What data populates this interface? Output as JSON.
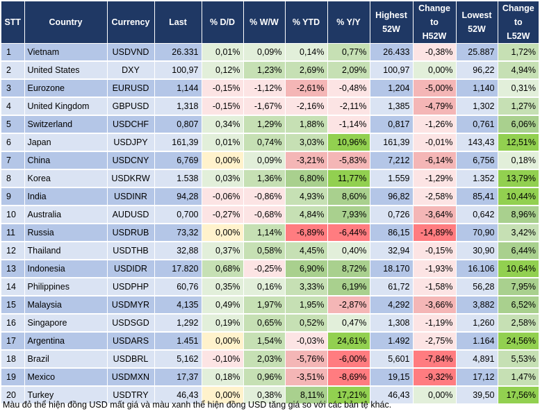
{
  "columns": [
    "STT",
    "Country",
    "Currency",
    "Last",
    "% D/D",
    "% W/W",
    "% YTD",
    "% Y/Y",
    "Highest 52W",
    "Change to H52W",
    "Lowest 52W",
    "Change to L52W"
  ],
  "rows": [
    {
      "stt": "1",
      "country": "Vietnam",
      "currency": "USDVND",
      "last": "26.331",
      "dd": "0,01%",
      "ww": "0,09%",
      "ytd": "0,14%",
      "yy": "0,77%",
      "h52": "26.433",
      "ch52": "-0,38%",
      "l52": "25.887",
      "cl52": "1,72%"
    },
    {
      "stt": "2",
      "country": "United States",
      "currency": "DXY",
      "last": "100,97",
      "dd": "0,12%",
      "ww": "1,23%",
      "ytd": "2,69%",
      "yy": "2,09%",
      "h52": "100,97",
      "ch52": "0,00%",
      "l52": "96,22",
      "cl52": "4,94%"
    },
    {
      "stt": "3",
      "country": "Eurozone",
      "currency": "EURUSD",
      "last": "1,144",
      "dd": "-0,15%",
      "ww": "-1,12%",
      "ytd": "-2,61%",
      "yy": "-0,48%",
      "h52": "1,204",
      "ch52": "-5,00%",
      "l52": "1,140",
      "cl52": "0,31%"
    },
    {
      "stt": "4",
      "country": "United Kingdom",
      "currency": "GBPUSD",
      "last": "1,318",
      "dd": "-0,15%",
      "ww": "-1,67%",
      "ytd": "-2,16%",
      "yy": "-2,11%",
      "h52": "1,385",
      "ch52": "-4,79%",
      "l52": "1,302",
      "cl52": "1,27%"
    },
    {
      "stt": "5",
      "country": "Switzerland",
      "currency": "USDCHF",
      "last": "0,807",
      "dd": "0,34%",
      "ww": "1,29%",
      "ytd": "1,88%",
      "yy": "-1,14%",
      "h52": "0,817",
      "ch52": "-1,26%",
      "l52": "0,761",
      "cl52": "6,06%"
    },
    {
      "stt": "6",
      "country": "Japan",
      "currency": "USDJPY",
      "last": "161,39",
      "dd": "0,01%",
      "ww": "0,74%",
      "ytd": "3,03%",
      "yy": "10,96%",
      "h52": "161,39",
      "ch52": "-0,01%",
      "l52": "143,43",
      "cl52": "12,51%"
    },
    {
      "stt": "7",
      "country": "China",
      "currency": "USDCNY",
      "last": "6,769",
      "dd": "0,00%",
      "ww": "0,09%",
      "ytd": "-3,21%",
      "yy": "-5,83%",
      "h52": "7,212",
      "ch52": "-6,14%",
      "l52": "6,756",
      "cl52": "0,18%"
    },
    {
      "stt": "8",
      "country": "Korea",
      "currency": "USDKRW",
      "last": "1.538",
      "dd": "0,03%",
      "ww": "1,36%",
      "ytd": "6,80%",
      "yy": "11,77%",
      "h52": "1.559",
      "ch52": "-1,29%",
      "l52": "1.352",
      "cl52": "13,79%"
    },
    {
      "stt": "9",
      "country": "India",
      "currency": "USDINR",
      "last": "94,28",
      "dd": "-0,06%",
      "ww": "-0,86%",
      "ytd": "4,93%",
      "yy": "8,60%",
      "h52": "96,82",
      "ch52": "-2,58%",
      "l52": "85,41",
      "cl52": "10,44%"
    },
    {
      "stt": "10",
      "country": "Australia",
      "currency": "AUDUSD",
      "last": "0,700",
      "dd": "-0,27%",
      "ww": "-0,68%",
      "ytd": "4,84%",
      "yy": "7,93%",
      "h52": "0,726",
      "ch52": "-3,64%",
      "l52": "0,642",
      "cl52": "8,96%"
    },
    {
      "stt": "11",
      "country": "Russia",
      "currency": "USDRUB",
      "last": "73,32",
      "dd": "0,00%",
      "ww": "1,14%",
      "ytd": "-6,89%",
      "yy": "-6,44%",
      "h52": "86,15",
      "ch52": "-14,89%",
      "l52": "70,90",
      "cl52": "3,42%"
    },
    {
      "stt": "12",
      "country": "Thailand",
      "currency": "USDTHB",
      "last": "32,88",
      "dd": "0,37%",
      "ww": "0,58%",
      "ytd": "4,45%",
      "yy": "0,40%",
      "h52": "32,94",
      "ch52": "-0,15%",
      "l52": "30,90",
      "cl52": "6,44%"
    },
    {
      "stt": "13",
      "country": "Indonesia",
      "currency": "USDIDR",
      "last": "17.820",
      "dd": "0,68%",
      "ww": "-0,25%",
      "ytd": "6,90%",
      "yy": "8,72%",
      "h52": "18.170",
      "ch52": "-1,93%",
      "l52": "16.106",
      "cl52": "10,64%"
    },
    {
      "stt": "14",
      "country": "Philippines",
      "currency": "USDPHP",
      "last": "60,76",
      "dd": "0,35%",
      "ww": "0,16%",
      "ytd": "3,33%",
      "yy": "6,19%",
      "h52": "61,72",
      "ch52": "-1,58%",
      "l52": "56,28",
      "cl52": "7,95%"
    },
    {
      "stt": "15",
      "country": "Malaysia",
      "currency": "USDMYR",
      "last": "4,135",
      "dd": "0,49%",
      "ww": "1,97%",
      "ytd": "1,95%",
      "yy": "-2,87%",
      "h52": "4,292",
      "ch52": "-3,66%",
      "l52": "3,882",
      "cl52": "6,52%"
    },
    {
      "stt": "16",
      "country": "Singapore",
      "currency": "USDSGD",
      "last": "1,292",
      "dd": "0,19%",
      "ww": "0,65%",
      "ytd": "0,52%",
      "yy": "0,47%",
      "h52": "1,308",
      "ch52": "-1,19%",
      "l52": "1,260",
      "cl52": "2,58%"
    },
    {
      "stt": "17",
      "country": "Argentina",
      "currency": "USDARS",
      "last": "1.451",
      "dd": "0,00%",
      "ww": "1,54%",
      "ytd": "-0,03%",
      "yy": "24,61%",
      "h52": "1.492",
      "ch52": "-2,75%",
      "l52": "1.164",
      "cl52": "24,56%"
    },
    {
      "stt": "18",
      "country": "Brazil",
      "currency": "USDBRL",
      "last": "5,162",
      "dd": "-0,10%",
      "ww": "2,03%",
      "ytd": "-5,76%",
      "yy": "-6,00%",
      "h52": "5,601",
      "ch52": "-7,84%",
      "l52": "4,891",
      "cl52": "5,53%"
    },
    {
      "stt": "19",
      "country": "Mexico",
      "currency": "USDMXN",
      "last": "17,37",
      "dd": "0,18%",
      "ww": "0,96%",
      "ytd": "-3,51%",
      "yy": "-8,69%",
      "h52": "19,15",
      "ch52": "-9,32%",
      "l52": "17,12",
      "cl52": "1,47%"
    },
    {
      "stt": "20",
      "country": "Turkey",
      "currency": "USDTRY",
      "last": "46,43",
      "dd": "0,00%",
      "ww": "0,38%",
      "ytd": "8,11%",
      "yy": "17,21%",
      "h52": "46,43",
      "ch52": "0,00%",
      "l52": "39,50",
      "cl52": "17,56%"
    }
  ],
  "footnote": "Màu đỏ thể hiện đồng USD mất giá và màu xanh thể hiện đồng USD tăng giá so với các bản tệ khác.",
  "colors": {
    "header_bg": "#1f3864",
    "row_blue_dark": "#b4c6e7",
    "row_blue_light": "#dae3f3",
    "green_light": "#e2efda",
    "green_mid": "#c6e0b4",
    "green_strong": "#a9d08e",
    "green_bright": "#92d050",
    "red_light": "#fce4e4",
    "red_mid": "#f4b6b6",
    "red_strong": "#ff7c80",
    "yellow_neutral": "#fff2cc"
  }
}
